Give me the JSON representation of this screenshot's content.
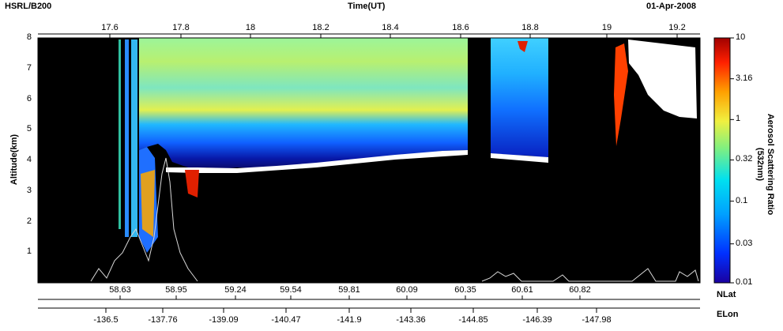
{
  "header": {
    "instrument": "HSRL/B200",
    "axis_title": "Time(UT)",
    "date": "01-Apr-2008"
  },
  "colorbar": {
    "label_line1": "Aerosol Scattering Ratio",
    "label_line2": "(532nm)",
    "ticks": [
      "10",
      "3.16",
      "1",
      "0.32",
      "0.1",
      "0.03",
      "0.01"
    ]
  },
  "chart_data": {
    "type": "heatmap",
    "ylabel": "Altitude(km)",
    "ylim": [
      0,
      8
    ],
    "y_ticks": [
      1,
      2,
      3,
      4,
      5,
      6,
      7,
      8
    ],
    "x_top": {
      "label": "Time(UT)",
      "ticks": [
        "17.6",
        "17.8",
        "18",
        "18.2",
        "18.4",
        "18.6",
        "18.8",
        "19",
        "19.2"
      ]
    },
    "x_bottom_lat": {
      "label": "NLat",
      "ticks": [
        "58.63",
        "58.95",
        "59.24",
        "59.54",
        "59.81",
        "60.09",
        "60.35",
        "60.61",
        "60.82"
      ]
    },
    "x_bottom_lon": {
      "label": "ELon",
      "ticks": [
        "-136.5",
        "-137.76",
        "-139.09",
        "-140.47",
        "-141.9",
        "-143.36",
        "-144.85",
        "-146.39",
        "-147.98"
      ]
    },
    "color_scale": "log",
    "color_range": [
      0.01,
      10
    ]
  }
}
